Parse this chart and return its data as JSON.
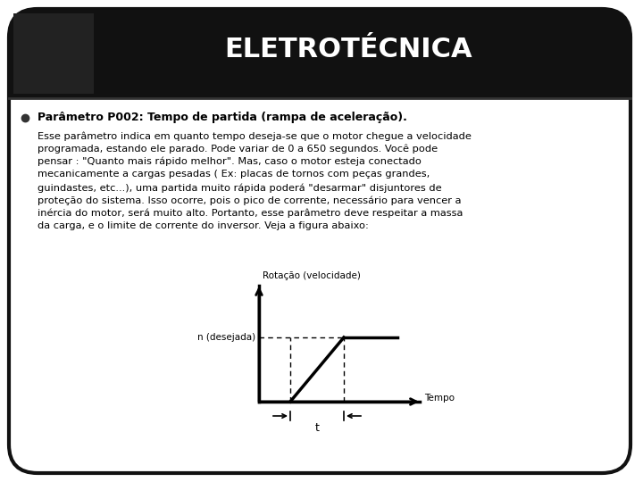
{
  "title": "ELETROTÉCNICA",
  "title_fontsize": 22,
  "title_color": "#ffffff",
  "header_bg_color": "#111111",
  "body_bg_color": "#ffffff",
  "border_color": "#000000",
  "bullet_color": "#333333",
  "bold_text": "Parâmetro P002: Tempo de partida (rampa de aceleração).",
  "body_text": "Esse parâmetro indica em quanto tempo deseja-se que o motor chegue a velocidade\nprogramada, estando ele parado. Pode variar de 0 a 650 segundos. Você pode\npensar : \"Quanto mais rápido melhor\". Mas, caso o motor esteja conectado\nmecanicamente a cargas pesadas ( Ex: placas de tornos com peças grandes,\nguindastes, etc...), uma partida muito rápida poderá \"desarmar\" disjuntores de\nproteção do sistema. Isso ocorre, pois o pico de corrente, necessário para vencer a\ninércia do motor, será muito alto. Portanto, esse parâmetro deve respeitar a massa\nda carga, e o limite de corrente do inversor. Veja a figura abaixo:",
  "fig_width": 7.2,
  "fig_height": 5.4,
  "dpi": 100,
  "graph_ylabel": "Rotação (velocidade)",
  "graph_xlabel": "Tempo",
  "graph_n_label": "n (desejada)",
  "graph_t_label": "t"
}
